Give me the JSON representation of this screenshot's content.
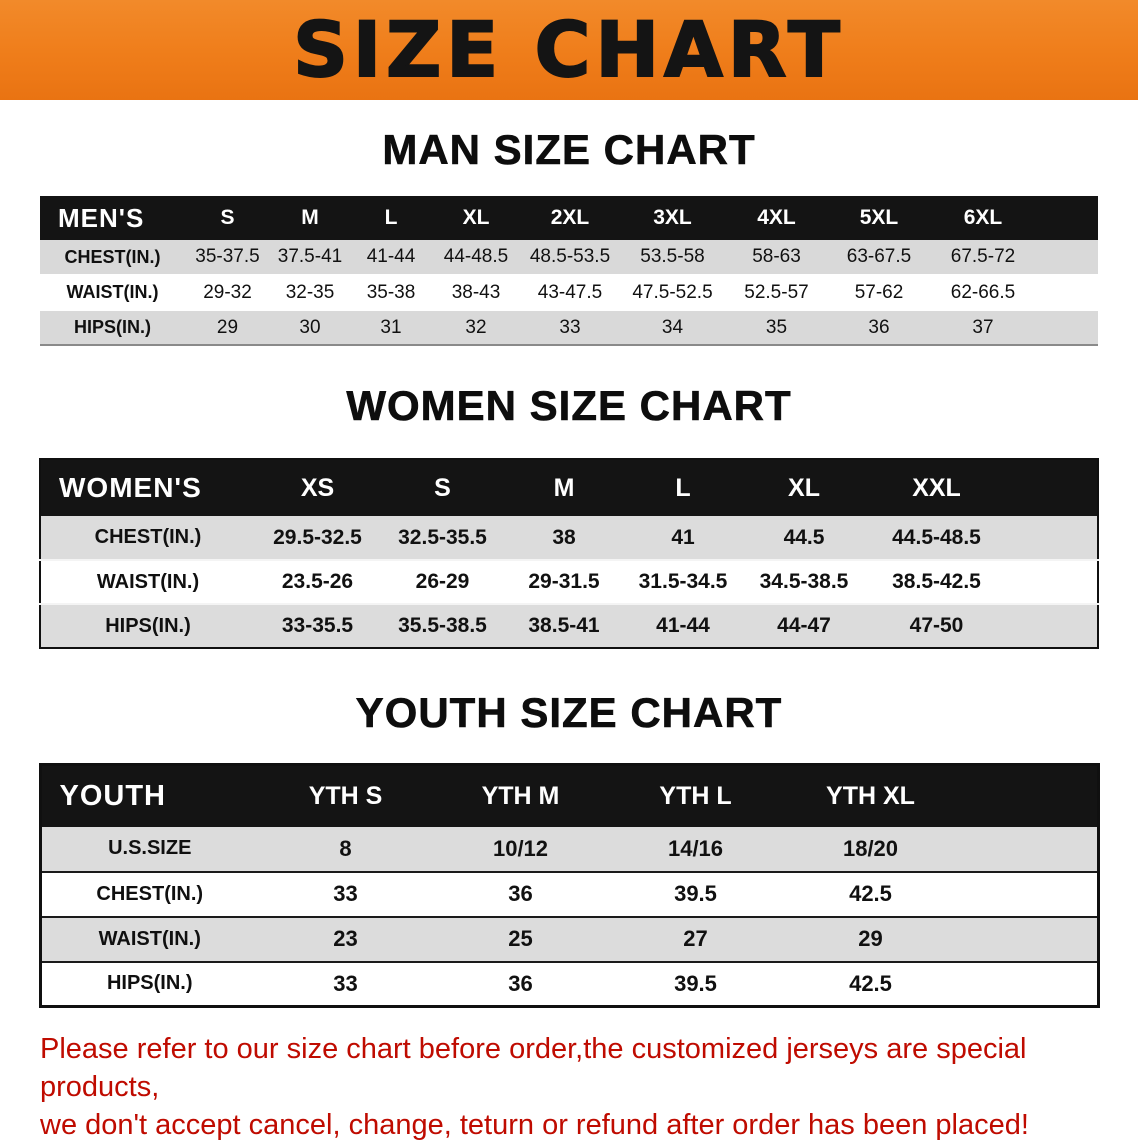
{
  "banner": {
    "title": "SIZE CHART"
  },
  "colors": {
    "banner_bg": "#ef7d1a",
    "table_header_bg": "#141414",
    "row_alt_bg": "#d9d9d9",
    "notice_text": "#bf0b00"
  },
  "sections": [
    {
      "id": "men",
      "heading": "MAN SIZE CHART",
      "table": {
        "header": [
          "MEN'S",
          "S",
          "M",
          "L",
          "XL",
          "2XL",
          "3XL",
          "4XL",
          "5XL",
          "6XL"
        ],
        "rows": [
          [
            "CHEST(IN.)",
            "35-37.5",
            "37.5-41",
            "41-44",
            "44-48.5",
            "48.5-53.5",
            "53.5-58",
            "58-63",
            "63-67.5",
            "67.5-72"
          ],
          [
            "WAIST(IN.)",
            "29-32",
            "32-35",
            "35-38",
            "38-43",
            "43-47.5",
            "47.5-52.5",
            "52.5-57",
            "57-62",
            "62-66.5"
          ],
          [
            "HIPS(IN.)",
            "29",
            "30",
            "31",
            "32",
            "33",
            "34",
            "35",
            "36",
            "37"
          ]
        ]
      }
    },
    {
      "id": "women",
      "heading": "WOMEN SIZE CHART",
      "table": {
        "header": [
          "WOMEN'S",
          "XS",
          "S",
          "M",
          "L",
          "XL",
          "XXL"
        ],
        "rows": [
          [
            "CHEST(IN.)",
            "29.5-32.5",
            "32.5-35.5",
            "38",
            "41",
            "44.5",
            "44.5-48.5"
          ],
          [
            "WAIST(IN.)",
            "23.5-26",
            "26-29",
            "29-31.5",
            "31.5-34.5",
            "34.5-38.5",
            "38.5-42.5"
          ],
          [
            "HIPS(IN.)",
            "33-35.5",
            "35.5-38.5",
            "38.5-41",
            "41-44",
            "44-47",
            "47-50"
          ]
        ]
      }
    },
    {
      "id": "youth",
      "heading": "YOUTH SIZE CHART",
      "table": {
        "header": [
          "YOUTH",
          "YTH S",
          "YTH M",
          "YTH L",
          "YTH XL"
        ],
        "rows": [
          [
            "U.S.SIZE",
            "8",
            "10/12",
            "14/16",
            "18/20"
          ],
          [
            "CHEST(IN.)",
            "33",
            "36",
            "39.5",
            "42.5"
          ],
          [
            "WAIST(IN.)",
            "23",
            "25",
            "27",
            "29"
          ],
          [
            "HIPS(IN.)",
            "33",
            "36",
            "39.5",
            "42.5"
          ]
        ]
      }
    }
  ],
  "notice": {
    "line1": "Please refer to our size chart before order,the customized jerseys are special products,",
    "line2": "we don't accept cancel, change, teturn or refund after order has been placed!"
  }
}
